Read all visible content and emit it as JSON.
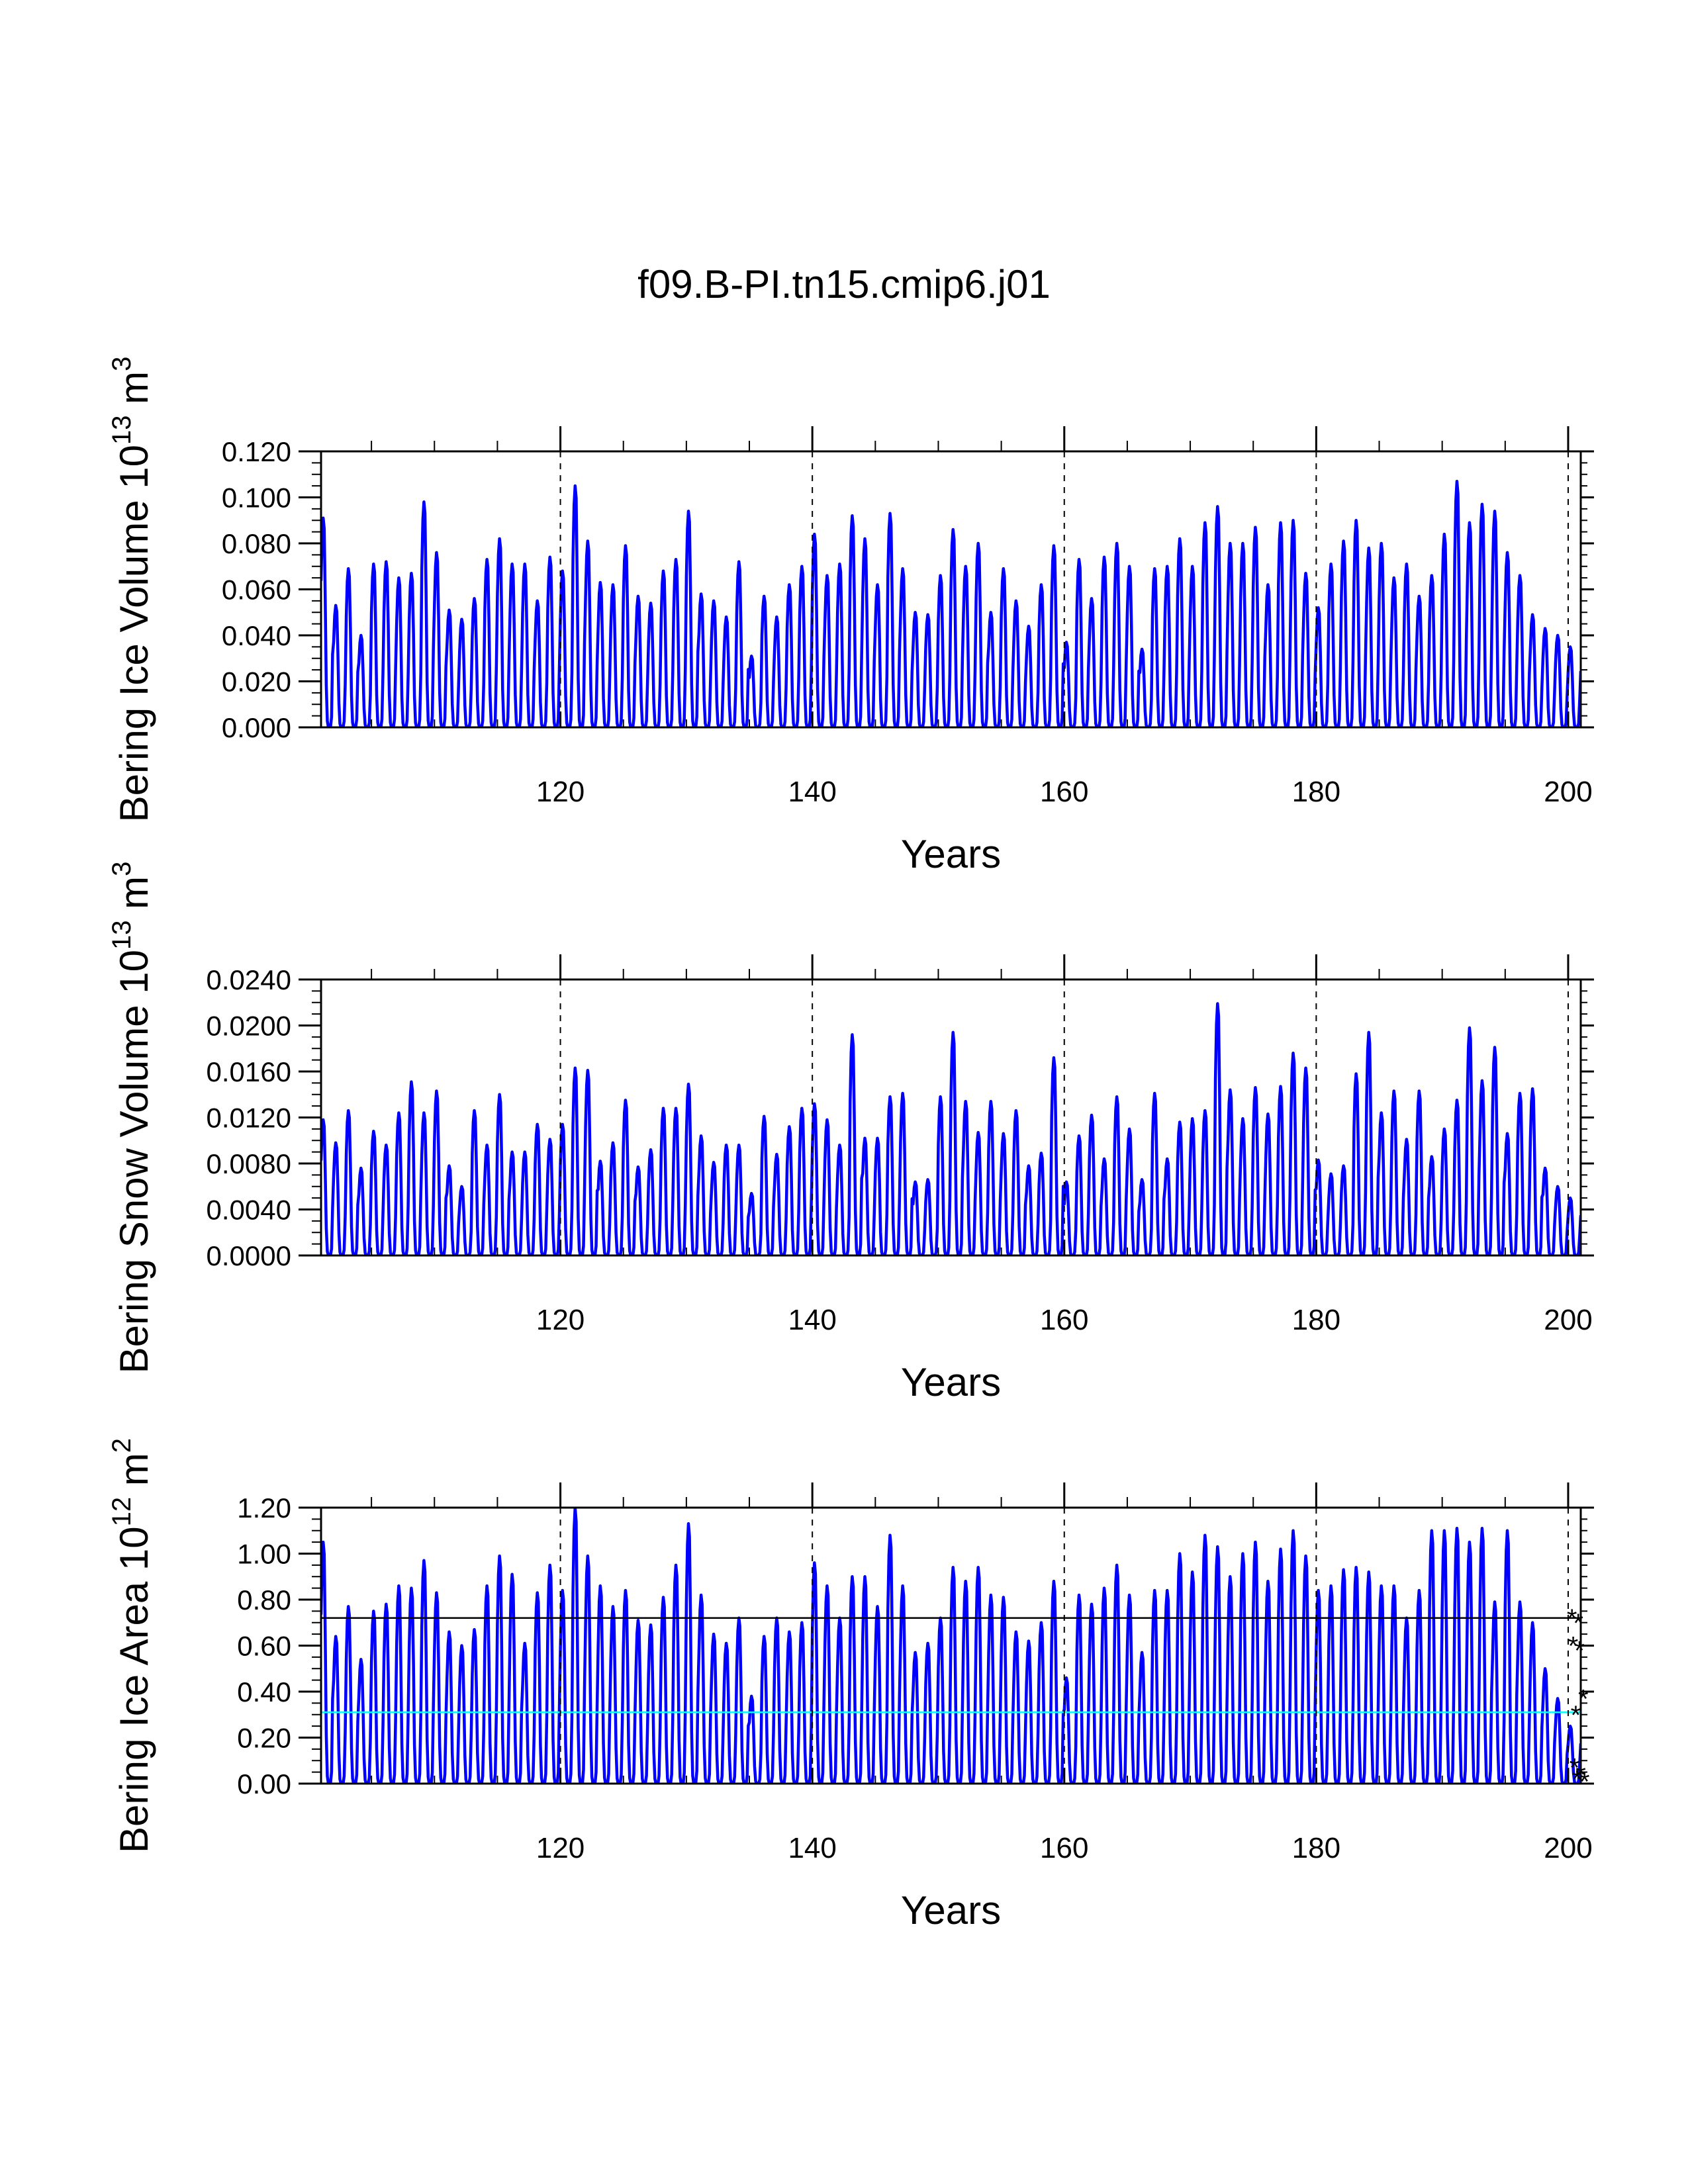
{
  "figure_title": "f09.B-PI.tn15.cmip6.j01",
  "colors": {
    "series": "#0000ff",
    "reference_line_black": "#000000",
    "reference_line_cyan": "#00ffff",
    "marker": "#ff0000",
    "axis": "#000000"
  },
  "chart_data": [
    {
      "type": "line",
      "title": "",
      "ylabel_main": "Bering Ice Volume 10",
      "ylabel_sup": "13",
      "ylabel_unit": " m",
      "ylabel_unit_sup": "3",
      "xlabel": "Years",
      "xlim": [
        101,
        201
      ],
      "ylim": [
        0,
        0.12
      ],
      "xticks": [
        120,
        140,
        160,
        180,
        200
      ],
      "xtick_labels": [
        "120",
        "140",
        "160",
        "180",
        "200"
      ],
      "yticks": [
        0,
        0.02,
        0.04,
        0.06,
        0.08,
        0.1,
        0.12
      ],
      "ytick_labels": [
        "0.000",
        "0.020",
        "0.040",
        "0.060",
        "0.080",
        "0.100",
        "0.120"
      ],
      "vlines": [
        120,
        140,
        160,
        180,
        200
      ],
      "hlines": [],
      "markers": [],
      "series": [
        {
          "name": "Bering Ice Volume",
          "note": "monthly seasonal cycle; annual winter peak maxima (years 101-200), near zero each summer",
          "x_start": 101,
          "annual_peaks": [
            0.091,
            0.053,
            0.069,
            0.04,
            0.071,
            0.072,
            0.065,
            0.067,
            0.098,
            0.076,
            0.051,
            0.047,
            0.056,
            0.073,
            0.082,
            0.071,
            0.071,
            0.055,
            0.074,
            0.068,
            0.105,
            0.081,
            0.063,
            0.062,
            0.079,
            0.057,
            0.054,
            0.068,
            0.073,
            0.094,
            0.058,
            0.055,
            0.048,
            0.072,
            0.031,
            0.057,
            0.048,
            0.062,
            0.07,
            0.084,
            0.066,
            0.071,
            0.092,
            0.082,
            0.062,
            0.093,
            0.069,
            0.05,
            0.049,
            0.066,
            0.086,
            0.07,
            0.08,
            0.05,
            0.069,
            0.055,
            0.044,
            0.062,
            0.079,
            0.037,
            0.073,
            0.056,
            0.074,
            0.08,
            0.07,
            0.034,
            0.069,
            0.07,
            0.082,
            0.07,
            0.089,
            0.096,
            0.08,
            0.08,
            0.087,
            0.062,
            0.089,
            0.09,
            0.067,
            0.052,
            0.071,
            0.081,
            0.09,
            0.078,
            0.08,
            0.065,
            0.071,
            0.057,
            0.066,
            0.084,
            0.107,
            0.089,
            0.097,
            0.094,
            0.076,
            0.066,
            0.049,
            0.043,
            0.04,
            0.035
          ]
        }
      ]
    },
    {
      "type": "line",
      "title": "",
      "ylabel_main": "Bering Snow Volume 10",
      "ylabel_sup": "13",
      "ylabel_unit": " m",
      "ylabel_unit_sup": "3",
      "xlabel": "Years",
      "xlim": [
        101,
        201
      ],
      "ylim": [
        0,
        0.024
      ],
      "xticks": [
        120,
        140,
        160,
        180,
        200
      ],
      "xtick_labels": [
        "120",
        "140",
        "160",
        "180",
        "200"
      ],
      "yticks": [
        0,
        0.004,
        0.008,
        0.012,
        0.016,
        0.02,
        0.024
      ],
      "ytick_labels": [
        "0.0000",
        "0.0040",
        "0.0080",
        "0.0120",
        "0.0160",
        "0.0200",
        "0.0240"
      ],
      "vlines": [
        120,
        140,
        160,
        180,
        200
      ],
      "hlines": [],
      "markers": [],
      "series": [
        {
          "name": "Bering Snow Volume",
          "note": "monthly seasonal cycle; annual winter peak maxima (years 101-200), near zero each summer",
          "x_start": 101,
          "annual_peaks": [
            0.0118,
            0.0098,
            0.0126,
            0.0076,
            0.0108,
            0.0096,
            0.0124,
            0.0151,
            0.0124,
            0.0143,
            0.0078,
            0.006,
            0.0126,
            0.0096,
            0.014,
            0.009,
            0.009,
            0.0114,
            0.0101,
            0.0114,
            0.0163,
            0.0161,
            0.0082,
            0.0098,
            0.0135,
            0.0077,
            0.0092,
            0.0128,
            0.0128,
            0.0149,
            0.0104,
            0.0081,
            0.0096,
            0.0096,
            0.0054,
            0.0121,
            0.0088,
            0.0112,
            0.0128,
            0.0132,
            0.0118,
            0.0096,
            0.0192,
            0.0102,
            0.0102,
            0.0138,
            0.0141,
            0.0064,
            0.0066,
            0.0138,
            0.0194,
            0.0134,
            0.0107,
            0.0134,
            0.0106,
            0.0126,
            0.0078,
            0.0089,
            0.0172,
            0.0064,
            0.0104,
            0.0122,
            0.0084,
            0.0138,
            0.011,
            0.0066,
            0.0141,
            0.0084,
            0.0116,
            0.0119,
            0.0126,
            0.0219,
            0.0144,
            0.0119,
            0.0146,
            0.0123,
            0.0147,
            0.0176,
            0.0163,
            0.0083,
            0.0071,
            0.0078,
            0.0158,
            0.0194,
            0.0124,
            0.0143,
            0.0101,
            0.0143,
            0.0086,
            0.011,
            0.0135,
            0.0198,
            0.0152,
            0.0181,
            0.0106,
            0.0141,
            0.0145,
            0.0076,
            0.006,
            0.005
          ]
        }
      ]
    },
    {
      "type": "line",
      "title": "",
      "ylabel_main": "Bering Ice Area 10",
      "ylabel_sup": "12",
      "ylabel_unit": " m",
      "ylabel_unit_sup": "2",
      "xlabel": "Years",
      "xlim": [
        101,
        201
      ],
      "ylim": [
        0,
        1.2
      ],
      "xticks": [
        120,
        140,
        160,
        180,
        200
      ],
      "xtick_labels": [
        "120",
        "140",
        "160",
        "180",
        "200"
      ],
      "yticks": [
        0,
        0.2,
        0.4,
        0.6,
        0.8,
        1.0,
        1.2
      ],
      "ytick_labels": [
        "0.00",
        "0.20",
        "0.40",
        "0.60",
        "0.80",
        "1.00",
        "1.20"
      ],
      "vlines": [
        120,
        140,
        160,
        180,
        200
      ],
      "hlines": [
        {
          "value": 0.72,
          "color": "#000000"
        },
        {
          "value": 0.31,
          "color": "#00ffff"
        }
      ],
      "markers": [
        {
          "x": 200.3,
          "y": 0.72
        },
        {
          "x": 200.8,
          "y": 0.7
        },
        {
          "x": 200.4,
          "y": 0.6
        },
        {
          "x": 200.9,
          "y": 0.58
        },
        {
          "x": 201.2,
          "y": 0.37
        },
        {
          "x": 200.6,
          "y": 0.3
        },
        {
          "x": 200.5,
          "y": 0.07
        },
        {
          "x": 201.0,
          "y": 0.04
        },
        {
          "x": 200.7,
          "y": 0.02
        },
        {
          "x": 201.3,
          "y": 0.01
        }
      ],
      "series": [
        {
          "name": "Bering Ice Area",
          "note": "monthly seasonal cycle; annual winter peak maxima (years 101-200), near zero each summer",
          "x_start": 101,
          "annual_peaks": [
            1.05,
            0.64,
            0.77,
            0.54,
            0.75,
            0.78,
            0.86,
            0.85,
            0.97,
            0.83,
            0.66,
            0.6,
            0.67,
            0.86,
            0.99,
            0.91,
            0.61,
            0.83,
            0.95,
            0.84,
            1.2,
            0.99,
            0.86,
            0.77,
            0.84,
            0.71,
            0.69,
            0.81,
            0.95,
            1.13,
            0.82,
            0.65,
            0.61,
            0.72,
            0.38,
            0.64,
            0.72,
            0.66,
            0.7,
            0.96,
            0.86,
            0.72,
            0.9,
            0.9,
            0.77,
            1.08,
            0.86,
            0.57,
            0.61,
            0.72,
            0.94,
            0.88,
            0.94,
            0.82,
            0.81,
            0.66,
            0.62,
            0.7,
            0.88,
            0.46,
            0.82,
            0.78,
            0.85,
            0.95,
            0.82,
            0.57,
            0.84,
            0.84,
            1.0,
            0.92,
            1.08,
            1.03,
            0.9,
            1.0,
            1.05,
            0.88,
            1.02,
            1.1,
            0.99,
            0.84,
            0.86,
            0.93,
            0.94,
            0.92,
            0.86,
            0.86,
            0.72,
            0.84,
            1.1,
            1.1,
            1.11,
            1.05,
            1.11,
            0.79,
            1.1,
            0.79,
            0.7,
            0.5,
            0.37,
            0.25
          ]
        }
      ]
    }
  ]
}
